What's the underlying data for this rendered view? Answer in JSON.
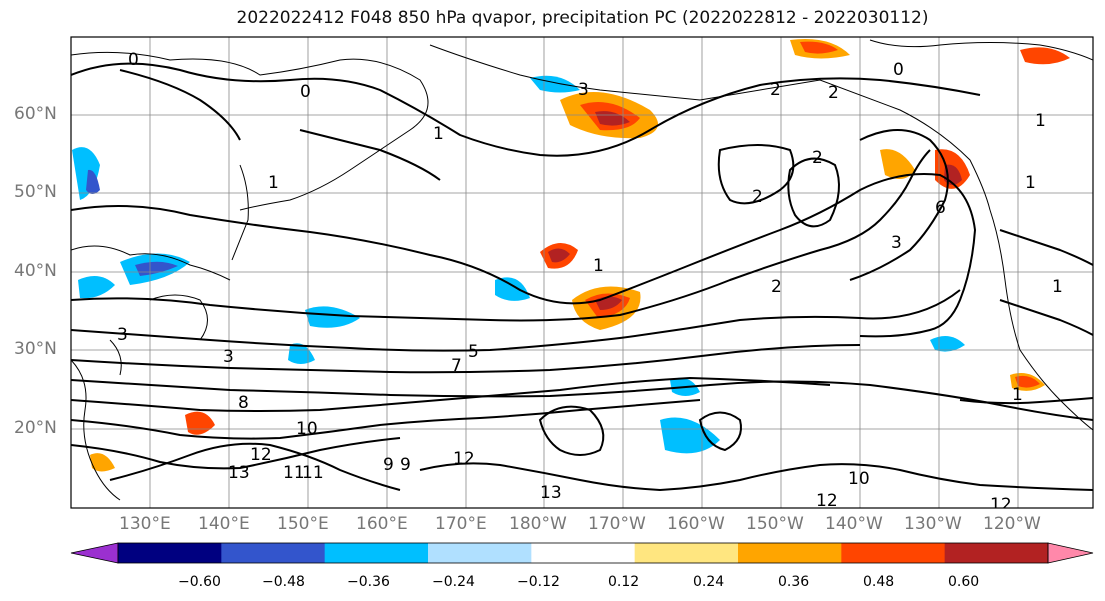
{
  "title": "2022022412 F048 850 hPa qvapor, precipitation PC (2022022812 - 2022030112)",
  "latitude_labels": [
    "60°N",
    "50°N",
    "40°N",
    "30°N",
    "20°N"
  ],
  "longitude_labels": [
    "130°E",
    "140°E",
    "150°E",
    "160°E",
    "170°E",
    "180°W",
    "170°W",
    "160°W",
    "150°W",
    "140°W",
    "130°W",
    "120°W"
  ],
  "colorbar": {
    "ticks": [
      "−0.60",
      "−0.48",
      "−0.36",
      "−0.24",
      "−0.12",
      "0.12",
      "0.24",
      "0.36",
      "0.48",
      "0.60"
    ],
    "colors": [
      "#9b30d0",
      "#000080",
      "#3355cc",
      "#00bfff",
      "#b0e0ff",
      "#ffffff",
      "#ffe680",
      "#ffa500",
      "#ff4500",
      "#b22222",
      "#ff88aa"
    ]
  },
  "contour_labels": [
    "0",
    "0",
    "0",
    "3",
    "2",
    "2",
    "2",
    "2",
    "1",
    "1",
    "1",
    "1",
    "1",
    "6",
    "3",
    "2",
    "1",
    "1",
    "3",
    "5",
    "7",
    "8",
    "9",
    "10",
    "11",
    "12",
    "13",
    "10",
    "12",
    "13",
    "12",
    "11",
    "12",
    "9",
    "3"
  ],
  "colors": {
    "contour": "#000000",
    "coastline": "#000000",
    "grid": "#888888",
    "axis_text": "#777777"
  }
}
